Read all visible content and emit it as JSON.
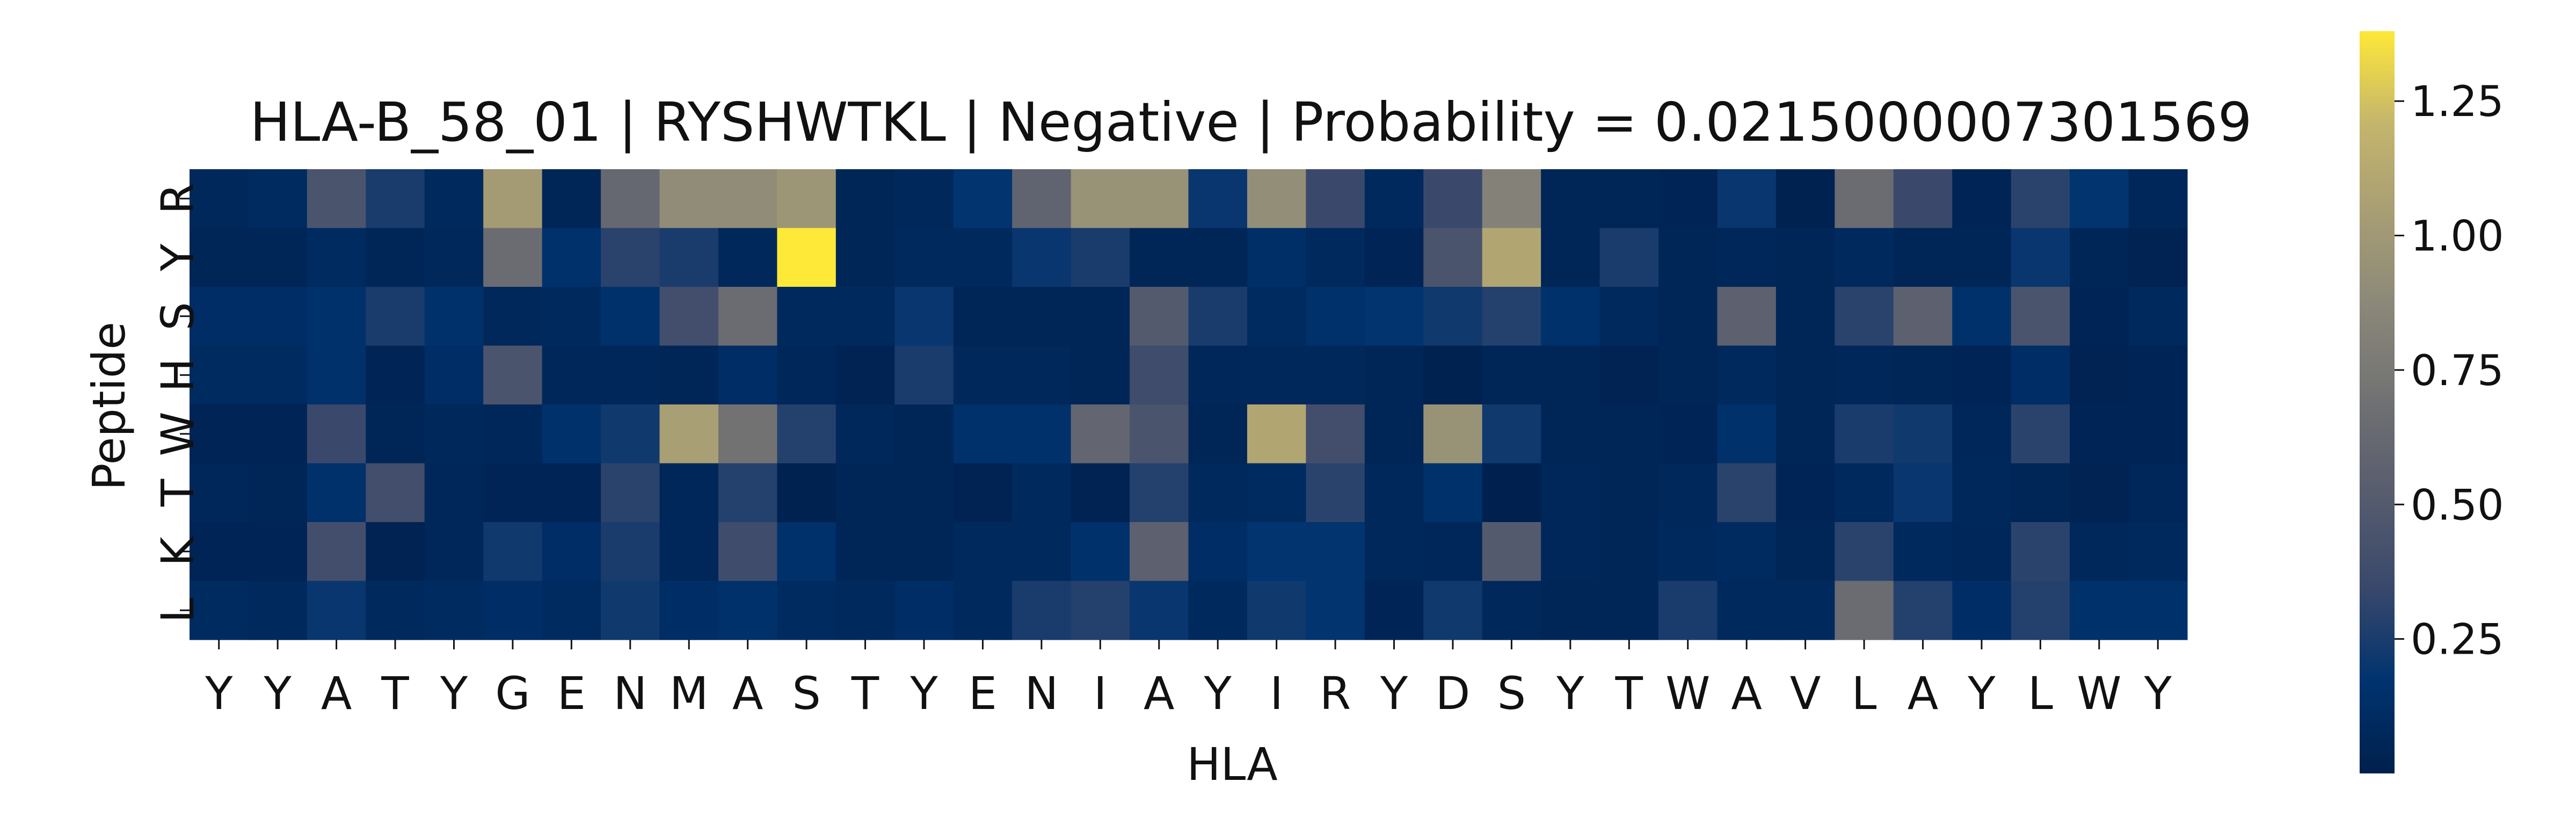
{
  "chart_data": {
    "type": "heatmap",
    "title": "HLA-B_58_01 | RYSHWTKL | Negative | Probability = 0.0215000007301569",
    "xlabel": "HLA",
    "ylabel": "Peptide",
    "x_categories": [
      "Y",
      "Y",
      "A",
      "T",
      "Y",
      "G",
      "E",
      "N",
      "M",
      "A",
      "S",
      "T",
      "Y",
      "E",
      "N",
      "I",
      "A",
      "Y",
      "I",
      "R",
      "Y",
      "D",
      "S",
      "Y",
      "T",
      "W",
      "A",
      "V",
      "L",
      "A",
      "Y",
      "L",
      "W",
      "Y"
    ],
    "y_categories": [
      "R",
      "Y",
      "S",
      "H",
      "W",
      "T",
      "K",
      "L"
    ],
    "values": [
      [
        0.07,
        0.1,
        0.45,
        0.25,
        0.08,
        1.02,
        0.05,
        0.62,
        0.9,
        0.9,
        0.98,
        0.05,
        0.07,
        0.18,
        0.58,
        0.95,
        0.95,
        0.2,
        0.92,
        0.35,
        0.08,
        0.35,
        0.82,
        0.05,
        0.05,
        0.04,
        0.2,
        0.02,
        0.65,
        0.35,
        0.04,
        0.3,
        0.18,
        0.06
      ],
      [
        0.05,
        0.05,
        0.1,
        0.05,
        0.07,
        0.65,
        0.15,
        0.3,
        0.25,
        0.07,
        1.38,
        0.05,
        0.08,
        0.08,
        0.2,
        0.25,
        0.05,
        0.05,
        0.13,
        0.08,
        0.04,
        0.45,
        1.1,
        0.05,
        0.25,
        0.05,
        0.06,
        0.05,
        0.08,
        0.05,
        0.05,
        0.2,
        0.05,
        0.03
      ],
      [
        0.12,
        0.12,
        0.15,
        0.25,
        0.15,
        0.07,
        0.08,
        0.15,
        0.4,
        0.65,
        0.08,
        0.08,
        0.2,
        0.05,
        0.05,
        0.05,
        0.5,
        0.25,
        0.1,
        0.15,
        0.18,
        0.22,
        0.28,
        0.15,
        0.08,
        0.05,
        0.55,
        0.05,
        0.3,
        0.55,
        0.15,
        0.45,
        0.04,
        0.08
      ],
      [
        0.1,
        0.1,
        0.15,
        0.04,
        0.12,
        0.45,
        0.06,
        0.06,
        0.05,
        0.12,
        0.06,
        0.03,
        0.25,
        0.07,
        0.07,
        0.05,
        0.38,
        0.06,
        0.07,
        0.07,
        0.05,
        0.02,
        0.05,
        0.05,
        0.03,
        0.05,
        0.08,
        0.05,
        0.06,
        0.05,
        0.04,
        0.12,
        0.03,
        0.04
      ],
      [
        0.04,
        0.04,
        0.35,
        0.05,
        0.07,
        0.06,
        0.15,
        0.22,
        1.05,
        0.7,
        0.28,
        0.07,
        0.05,
        0.15,
        0.15,
        0.6,
        0.45,
        0.05,
        1.1,
        0.4,
        0.05,
        0.95,
        0.22,
        0.05,
        0.05,
        0.04,
        0.15,
        0.05,
        0.25,
        0.22,
        0.06,
        0.3,
        0.04,
        0.04
      ],
      [
        0.06,
        0.05,
        0.15,
        0.4,
        0.06,
        0.04,
        0.04,
        0.3,
        0.06,
        0.28,
        0.02,
        0.05,
        0.05,
        0.03,
        0.08,
        0.03,
        0.28,
        0.08,
        0.1,
        0.3,
        0.07,
        0.15,
        0.01,
        0.06,
        0.05,
        0.07,
        0.3,
        0.04,
        0.08,
        0.2,
        0.07,
        0.05,
        0.03,
        0.06
      ],
      [
        0.04,
        0.04,
        0.4,
        0.03,
        0.06,
        0.22,
        0.12,
        0.25,
        0.06,
        0.38,
        0.15,
        0.05,
        0.05,
        0.08,
        0.08,
        0.15,
        0.55,
        0.12,
        0.18,
        0.18,
        0.07,
        0.06,
        0.5,
        0.06,
        0.05,
        0.08,
        0.1,
        0.05,
        0.3,
        0.08,
        0.06,
        0.3,
        0.07,
        0.08
      ],
      [
        0.1,
        0.08,
        0.2,
        0.08,
        0.1,
        0.12,
        0.1,
        0.22,
        0.12,
        0.15,
        0.1,
        0.08,
        0.12,
        0.08,
        0.25,
        0.28,
        0.2,
        0.08,
        0.22,
        0.18,
        0.04,
        0.22,
        0.07,
        0.05,
        0.05,
        0.25,
        0.08,
        0.08,
        0.65,
        0.28,
        0.12,
        0.28,
        0.15,
        0.15
      ]
    ],
    "colorbar": {
      "colormap": "cividis",
      "vmin": 0.0,
      "vmax": 1.38,
      "ticks": [
        0.25,
        0.5,
        0.75,
        1.0,
        1.25
      ],
      "tick_labels": [
        "0.25",
        "0.50",
        "0.75",
        "1.00",
        "1.25"
      ]
    }
  }
}
